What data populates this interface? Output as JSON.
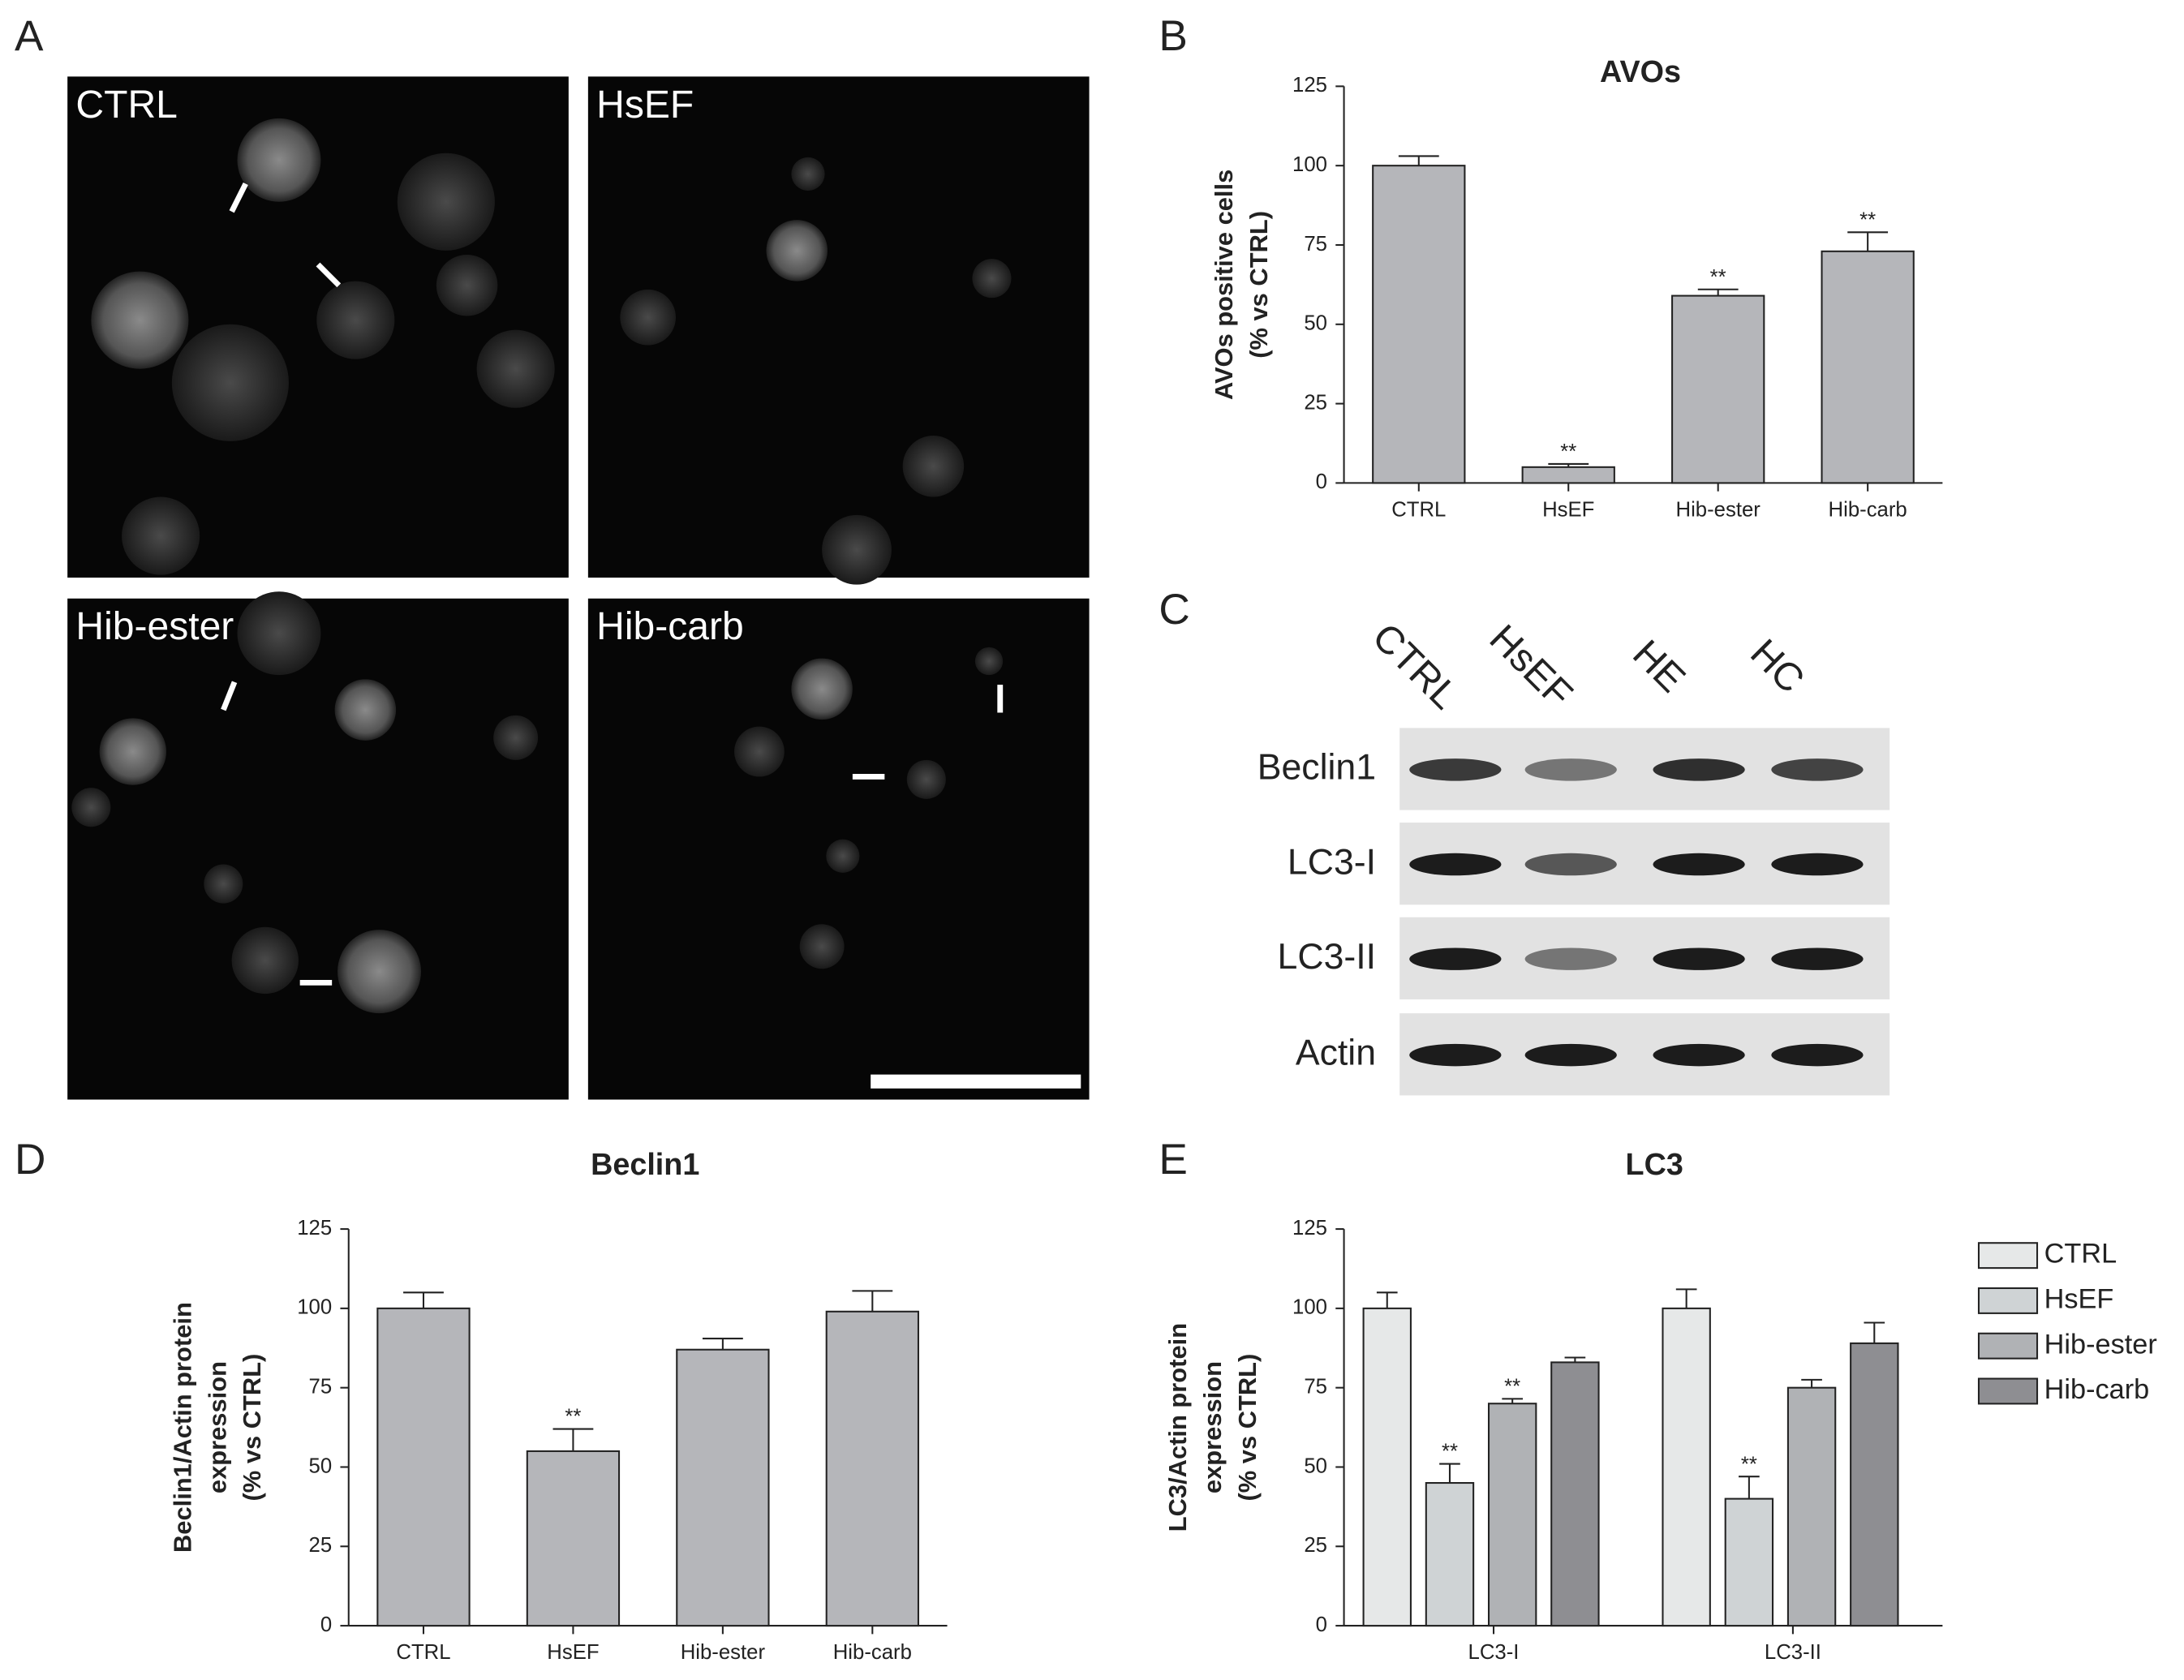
{
  "panel_labels": [
    "A",
    "B",
    "C",
    "D",
    "E"
  ],
  "micrographs": [
    "CTRL",
    "HsEF",
    "Hib-ester",
    "Hib-carb"
  ],
  "blot": {
    "lanes": [
      "CTRL",
      "HsEF",
      "HE",
      "HC"
    ],
    "proteins": [
      "Beclin1",
      "LC3-I",
      "LC3-II",
      "Actin"
    ]
  },
  "chart_data": [
    {
      "type": "bar",
      "title": "AVOs",
      "ylabel": [
        "AVOs positive cells",
        "(% vs CTRL)"
      ],
      "categories": [
        "CTRL",
        "HsEF",
        "Hib-ester",
        "Hib-carb"
      ],
      "values": [
        100,
        5,
        59,
        73
      ],
      "errors": [
        3,
        1,
        2,
        6
      ],
      "significance": [
        null,
        "**",
        "**",
        "**"
      ],
      "color": "#b5b6ba",
      "ylim": [
        0,
        125
      ],
      "yticks": [
        0,
        25,
        50,
        75,
        100,
        125
      ]
    },
    {
      "type": "bar",
      "title": "Beclin1",
      "ylabel": [
        "Beclin1/Actin protein",
        "expression",
        "(% vs CTRL)"
      ],
      "categories": [
        "CTRL",
        "HsEF",
        "Hib-ester",
        "Hib-carb"
      ],
      "values": [
        100,
        55,
        87,
        99
      ],
      "errors": [
        5,
        7,
        3.5,
        6.5
      ],
      "significance": [
        null,
        "**",
        null,
        null
      ],
      "color": "#b5b6ba",
      "ylim": [
        0,
        125
      ],
      "yticks": [
        0,
        25,
        50,
        75,
        100,
        125
      ]
    },
    {
      "type": "bar",
      "title": "LC3",
      "ylabel": [
        "LC3/Actin protein",
        "expression",
        "(% vs CTRL)"
      ],
      "categories": [
        "LC3-I",
        "LC3-II"
      ],
      "series": [
        {
          "name": "CTRL",
          "color": "#e6e8e8",
          "values": [
            100,
            100
          ],
          "errors": [
            5,
            6
          ],
          "significance": [
            null,
            null
          ]
        },
        {
          "name": "HsEF",
          "color": "#cfd3d5",
          "values": [
            45,
            40
          ],
          "errors": [
            6,
            7
          ],
          "significance": [
            "**",
            "**"
          ]
        },
        {
          "name": "Hib-ester",
          "color": "#b0b2b5",
          "values": [
            70,
            75
          ],
          "errors": [
            1.5,
            2.5
          ],
          "significance": [
            "**",
            null
          ]
        },
        {
          "name": "Hib-carb",
          "color": "#8e8e92",
          "values": [
            83,
            89
          ],
          "errors": [
            1.5,
            6.5
          ],
          "significance": [
            null,
            null
          ]
        }
      ],
      "legend": "right",
      "ylim": [
        0,
        125
      ],
      "yticks": [
        0,
        25,
        50,
        75,
        100,
        125
      ]
    }
  ]
}
